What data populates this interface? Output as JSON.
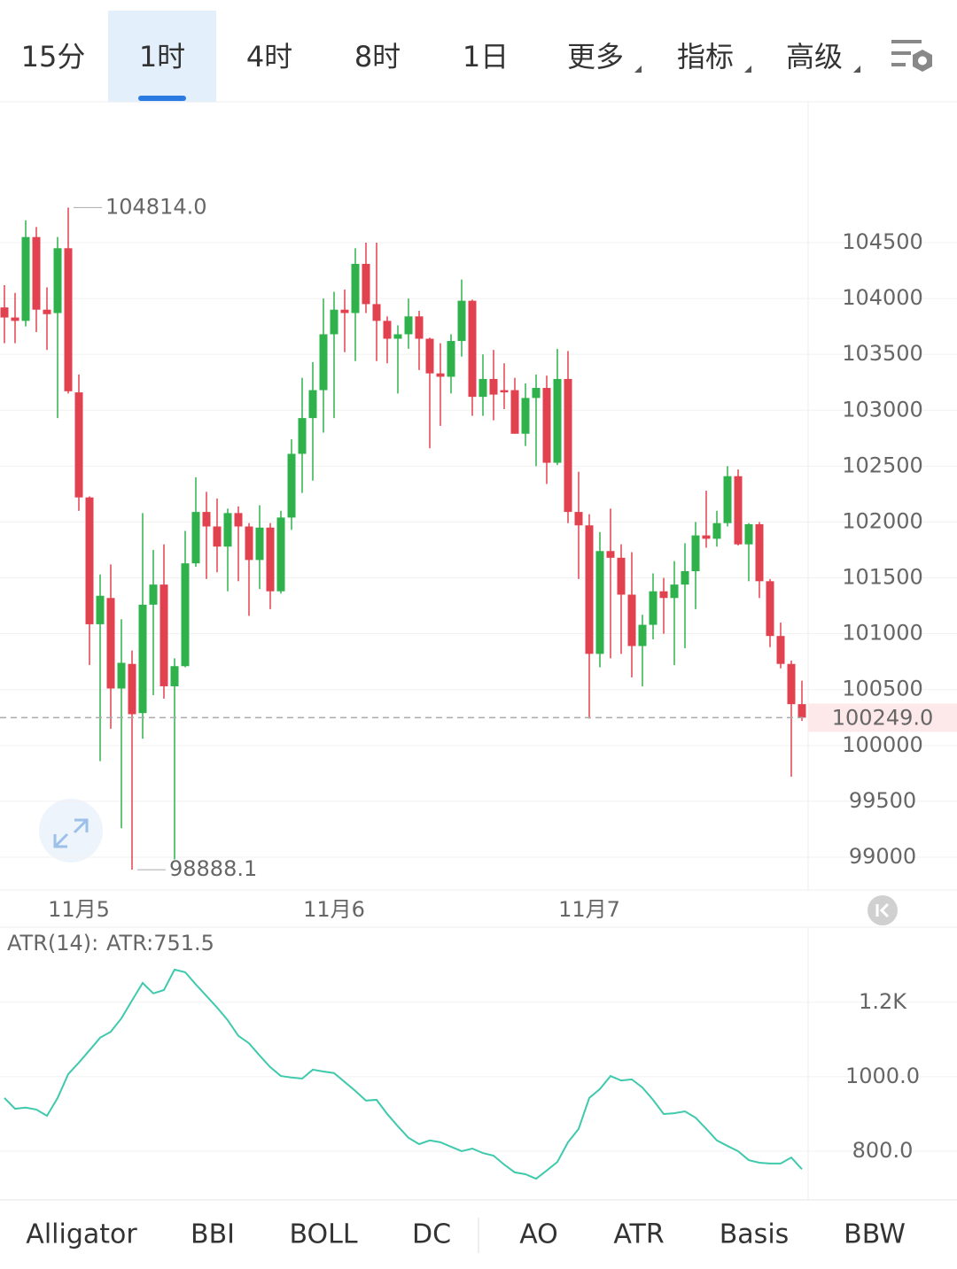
{
  "top_tabs": {
    "items": [
      "15分",
      "1时",
      "4时",
      "8时",
      "1日",
      "更多",
      "指标",
      "高级"
    ],
    "active": 1
  },
  "chart_data": [
    {
      "type": "candlestick",
      "up_color": "#2fb24c",
      "down_color": "#e2424f",
      "categories": [
        null,
        null,
        null,
        null,
        null,
        null,
        null,
        "11月5",
        null,
        null,
        null,
        null,
        null,
        null,
        null,
        null,
        null,
        null,
        null,
        null,
        null,
        null,
        null,
        null,
        null,
        null,
        null,
        null,
        null,
        null,
        null,
        "11月6",
        null,
        null,
        null,
        null,
        null,
        null,
        null,
        null,
        null,
        null,
        null,
        null,
        null,
        null,
        null,
        null,
        null,
        null,
        null,
        null,
        null,
        null,
        null,
        "11月7",
        null,
        null,
        null,
        null,
        null,
        null,
        null,
        null,
        null,
        null,
        null,
        null,
        null,
        null,
        null,
        null,
        null,
        null,
        null,
        null
      ],
      "open": [
        103920,
        103830,
        103800,
        104550,
        103900,
        103870,
        104450,
        103160,
        102220,
        101085,
        101320,
        100510,
        100730,
        100290,
        101260,
        101440,
        100530,
        100710,
        101630,
        102090,
        101960,
        101780,
        102080,
        101960,
        101660,
        101950,
        101380,
        102040,
        102610,
        102930,
        103180,
        103680,
        103900,
        103870,
        104310,
        103950,
        103800,
        103640,
        103680,
        103840,
        103640,
        103330,
        103300,
        103620,
        103980,
        103120,
        103280,
        103180,
        103180,
        102790,
        103110,
        103200,
        102530,
        103280,
        102090,
        101970,
        100820,
        101740,
        101680,
        101350,
        100890,
        101080,
        101380,
        101320,
        101440,
        101560,
        101880,
        101850,
        101990,
        102410,
        101800,
        101980,
        101470,
        100980,
        100730,
        100370
      ],
      "high": [
        104120,
        104050,
        104700,
        104640,
        104100,
        104550,
        104814,
        103320,
        102230,
        101530,
        101620,
        101130,
        100850,
        102080,
        101750,
        101800,
        100780,
        101920,
        102400,
        102270,
        102210,
        102120,
        102140,
        101990,
        102150,
        101990,
        102100,
        102740,
        103290,
        103430,
        104000,
        104060,
        104080,
        104450,
        104500,
        104500,
        103840,
        103760,
        104000,
        103890,
        103650,
        103600,
        103680,
        104170,
        103990,
        103500,
        103540,
        103420,
        103290,
        103240,
        103320,
        103310,
        103550,
        103530,
        102450,
        102070,
        101910,
        102120,
        101800,
        101730,
        101170,
        101540,
        101500,
        101650,
        101810,
        102000,
        102280,
        102100,
        102500,
        102470,
        101990,
        102000,
        101490,
        101100,
        100760,
        100580
      ],
      "low": [
        103600,
        103600,
        103750,
        103700,
        103540,
        102930,
        103150,
        102100,
        100720,
        99860,
        100150,
        99260,
        98888.1,
        100060,
        100450,
        100420,
        98980,
        100700,
        101600,
        101490,
        101550,
        101380,
        101470,
        101160,
        101400,
        101220,
        101360,
        101930,
        102260,
        102370,
        102800,
        102930,
        103520,
        103440,
        103870,
        103440,
        103420,
        103150,
        103550,
        103360,
        102660,
        102860,
        103150,
        103480,
        102950,
        102950,
        102910,
        103010,
        102790,
        102680,
        102500,
        102340,
        102510,
        101990,
        101490,
        100240,
        100700,
        100780,
        100820,
        100610,
        100530,
        100950,
        101000,
        100720,
        100870,
        101220,
        101770,
        101780,
        101960,
        101790,
        101470,
        101320,
        100880,
        100690,
        99720,
        100220
      ],
      "close": [
        103830,
        103800,
        104550,
        103900,
        103860,
        104450,
        103170,
        102220,
        101085,
        101340,
        100510,
        100740,
        100280,
        101260,
        101440,
        100530,
        100710,
        101630,
        102090,
        101960,
        101780,
        102080,
        101960,
        101660,
        101950,
        101380,
        102040,
        102610,
        102930,
        103180,
        103680,
        103900,
        103870,
        104310,
        103950,
        103800,
        103640,
        103680,
        103840,
        103640,
        103330,
        103300,
        103620,
        103980,
        103120,
        103280,
        103140,
        103160,
        102790,
        103110,
        103200,
        102530,
        103280,
        102090,
        101970,
        100820,
        101740,
        101680,
        101350,
        100890,
        101080,
        101380,
        101320,
        101440,
        101560,
        101880,
        101850,
        101990,
        102410,
        101800,
        101980,
        101470,
        100980,
        100730,
        100370,
        100249
      ],
      "ylim": [
        98707,
        105760
      ],
      "yticks": [
        99000,
        99500,
        100000,
        100500,
        101000,
        101500,
        102000,
        102500,
        103000,
        103500,
        104000,
        104500
      ],
      "grid": true,
      "annotations": [
        {
          "value": 104814,
          "label": "104814.0"
        },
        {
          "value": 98888.1,
          "label": "98888.1"
        }
      ],
      "last_price": {
        "value": 100249,
        "label": "100249.0"
      }
    },
    {
      "type": "line",
      "title": "ATR(14):",
      "current_label": "ATR:751.5",
      "series": [
        {
          "name": "ATR",
          "color": "#3fc9ad",
          "values": [
            943,
            914,
            917,
            912,
            895,
            943,
            1007,
            1038,
            1071,
            1105,
            1121,
            1157,
            1205,
            1252,
            1224,
            1233,
            1288,
            1281,
            1248,
            1217,
            1186,
            1152,
            1110,
            1090,
            1057,
            1026,
            1002,
            998,
            995,
            1019,
            1014,
            1010,
            986,
            962,
            936,
            938,
            900,
            867,
            836,
            819,
            829,
            824,
            812,
            800,
            807,
            795,
            788,
            764,
            743,
            738,
            726,
            748,
            771,
            824,
            860,
            943,
            967,
            1002,
            990,
            993,
            971,
            938,
            900,
            902,
            907,
            890,
            860,
            829,
            814,
            800,
            776,
            769,
            767,
            767,
            783,
            751.5
          ]
        }
      ],
      "ylim": [
        669,
        1402
      ],
      "yticks": [
        {
          "value": 800,
          "label": "800.0"
        },
        {
          "value": 1000,
          "label": "1000.0"
        },
        {
          "value": 1200,
          "label": "1.2K"
        }
      ],
      "grid": true
    }
  ],
  "indicator_tabs": {
    "items": [
      "Alligator",
      "BBI",
      "BOLL",
      "DC",
      "AO",
      "ATR",
      "Basis",
      "BBW"
    ],
    "active": 5
  }
}
